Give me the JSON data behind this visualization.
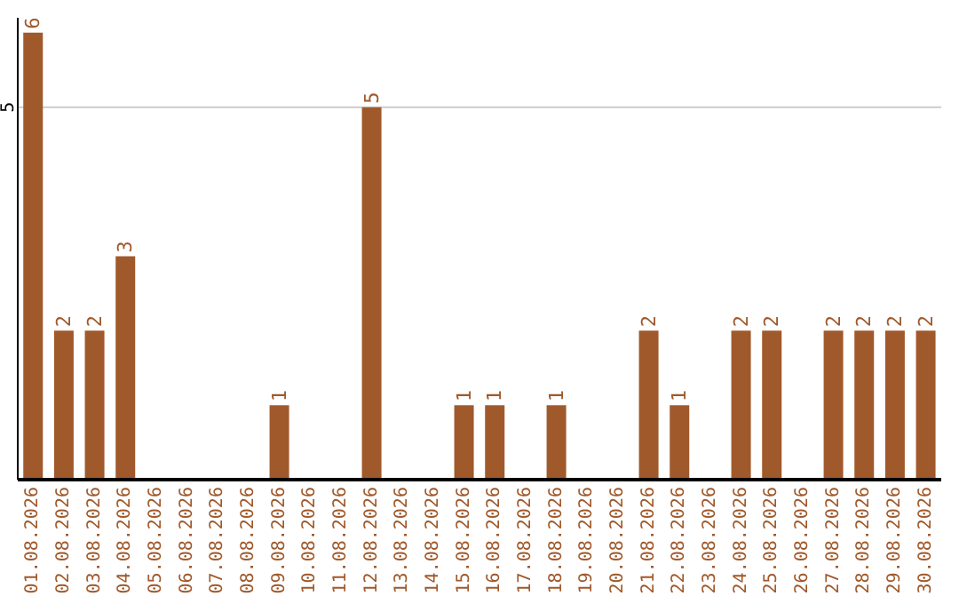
{
  "chart_data": {
    "type": "bar",
    "categories": [
      "01.08.2026",
      "02.08.2026",
      "03.08.2026",
      "04.08.2026",
      "05.08.2026",
      "06.08.2026",
      "07.08.2026",
      "08.08.2026",
      "09.08.2026",
      "10.08.2026",
      "11.08.2026",
      "12.08.2026",
      "13.08.2026",
      "14.08.2026",
      "15.08.2026",
      "16.08.2026",
      "17.08.2026",
      "18.08.2026",
      "19.08.2026",
      "20.08.2026",
      "21.08.2026",
      "22.08.2026",
      "23.08.2026",
      "24.08.2026",
      "25.08.2026",
      "26.08.2026",
      "27.08.2026",
      "28.08.2026",
      "29.08.2026",
      "30.08.2026"
    ],
    "values": [
      6,
      2,
      2,
      3,
      0,
      0,
      0,
      0,
      1,
      0,
      0,
      5,
      0,
      0,
      1,
      1,
      0,
      1,
      0,
      0,
      2,
      1,
      0,
      2,
      2,
      0,
      2,
      2,
      2,
      2
    ],
    "value_labels": [
      "6",
      "2",
      "2",
      "3",
      null,
      null,
      null,
      null,
      "1",
      null,
      null,
      "5",
      null,
      null,
      "1",
      "1",
      null,
      "1",
      null,
      null,
      "2",
      "1",
      null,
      "2",
      "2",
      null,
      "2",
      "2",
      "2",
      "2"
    ],
    "color": "#a0592b",
    "ylim": [
      0,
      6.2
    ],
    "yticks": [
      5
    ],
    "grid": "y"
  }
}
